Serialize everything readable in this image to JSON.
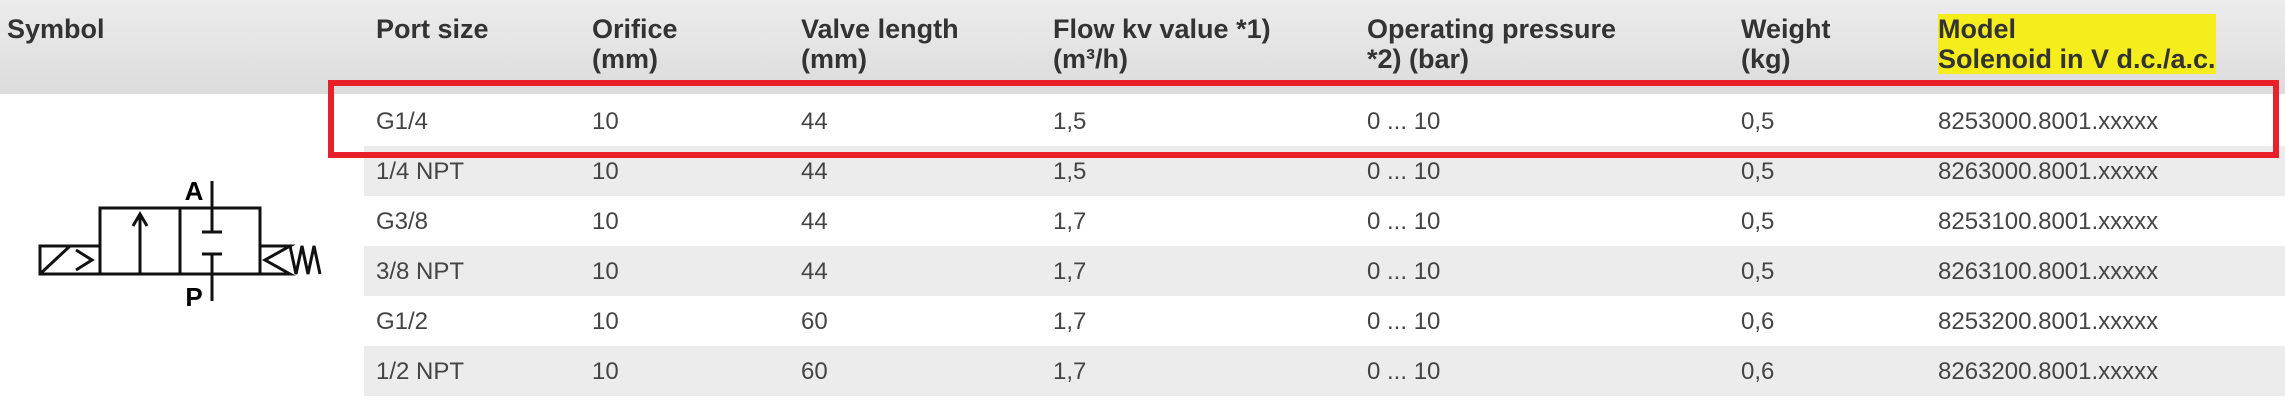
{
  "header": {
    "columns": [
      "Symbol",
      "Port size",
      "Orifice\n(mm)",
      "Valve length\n(mm)",
      "Flow kv value *1)\n(m³/h)",
      "Operating pressure\n*2) (bar)",
      "Weight\n(kg)",
      "Model\nSolenoid in V d.c./a.c."
    ]
  },
  "table": {
    "rows": [
      [
        "G1/4",
        "10",
        "44",
        "1,5",
        "0 ... 10",
        "0,5",
        "8253000.8001.xxxxx"
      ],
      [
        "1/4 NPT",
        "10",
        "44",
        "1,5",
        "0 ... 10",
        "0,5",
        "8263000.8001.xxxxx"
      ],
      [
        "G3/8",
        "10",
        "44",
        "1,7",
        "0 ... 10",
        "0,5",
        "8253100.8001.xxxxx"
      ],
      [
        "3/8 NPT",
        "10",
        "44",
        "1,7",
        "0 ... 10",
        "0,5",
        "8263100.8001.xxxxx"
      ],
      [
        "G1/2",
        "10",
        "60",
        "1,7",
        "0 ... 10",
        "0,6",
        "8253200.8001.xxxxx"
      ],
      [
        "1/2 NPT",
        "10",
        "60",
        "1,7",
        "0 ... 10",
        "0,6",
        "8263200.8001.xxxxx"
      ]
    ]
  },
  "symbol": {
    "port_a": "A",
    "port_p": "P"
  }
}
